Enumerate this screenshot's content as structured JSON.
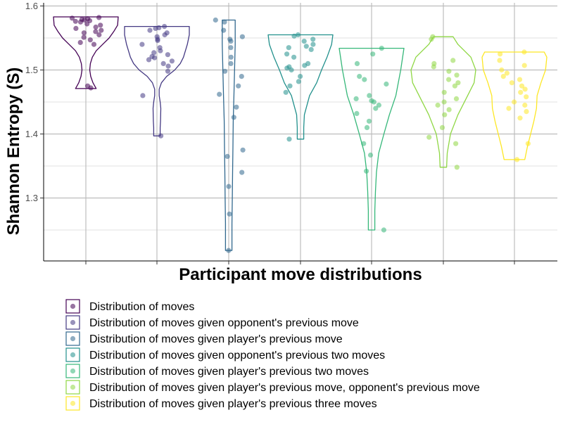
{
  "chart_data": {
    "type": "violin",
    "xlabel": "Participant move distributions",
    "ylabel": "Shannon Entropy (S)",
    "ylim": [
      1.2,
      1.6
    ],
    "y_ticks": [
      "1.3",
      "1.4",
      "1.5",
      "1.6"
    ],
    "y_tick_values": [
      1.3,
      1.4,
      1.5,
      1.6
    ],
    "grid": true,
    "legend_position": "bottom",
    "series": [
      {
        "name": "Distribution of moves",
        "color": "#440154",
        "min": 1.471,
        "max": 1.583,
        "profile": [
          [
            1.471,
            0.32
          ],
          [
            1.48,
            0.22
          ],
          [
            1.49,
            0.15
          ],
          [
            1.5,
            0.12
          ],
          [
            1.51,
            0.14
          ],
          [
            1.52,
            0.2
          ],
          [
            1.53,
            0.32
          ],
          [
            1.54,
            0.52
          ],
          [
            1.55,
            0.72
          ],
          [
            1.56,
            0.86
          ],
          [
            1.57,
            0.98
          ],
          [
            1.583,
            1.0
          ]
        ],
        "points": [
          1.582,
          1.581,
          1.58,
          1.579,
          1.578,
          1.577,
          1.576,
          1.575,
          1.572,
          1.57,
          1.567,
          1.565,
          1.562,
          1.56,
          1.558,
          1.555,
          1.551,
          1.547,
          1.543,
          1.54,
          1.475,
          1.472
        ]
      },
      {
        "name": "Distribution of moves given opponent's previous move",
        "color": "#443983",
        "min": 1.397,
        "max": 1.568,
        "profile": [
          [
            1.397,
            0.1
          ],
          [
            1.41,
            0.1
          ],
          [
            1.42,
            0.11
          ],
          [
            1.44,
            0.12
          ],
          [
            1.45,
            0.1
          ],
          [
            1.46,
            0.07
          ],
          [
            1.47,
            0.07
          ],
          [
            1.48,
            0.14
          ],
          [
            1.49,
            0.3
          ],
          [
            1.5,
            0.55
          ],
          [
            1.51,
            0.72
          ],
          [
            1.52,
            0.82
          ],
          [
            1.54,
            0.94
          ],
          [
            1.555,
            1.0
          ],
          [
            1.568,
            1.0
          ]
        ],
        "points": [
          1.568,
          1.566,
          1.565,
          1.562,
          1.558,
          1.555,
          1.552,
          1.548,
          1.546,
          1.54,
          1.535,
          1.53,
          1.527,
          1.524,
          1.521,
          1.519,
          1.516,
          1.514,
          1.51,
          1.506,
          1.498,
          1.46,
          1.397
        ]
      },
      {
        "name": "Distribution of moves given player's previous move",
        "color": "#31688e",
        "min": 1.218,
        "max": 1.578,
        "profile": [
          [
            1.218,
            0.1
          ],
          [
            1.26,
            0.1
          ],
          [
            1.3,
            0.11
          ],
          [
            1.34,
            0.12
          ],
          [
            1.38,
            0.13
          ],
          [
            1.42,
            0.14
          ],
          [
            1.46,
            0.16
          ],
          [
            1.5,
            0.18
          ],
          [
            1.54,
            0.2
          ],
          [
            1.57,
            0.2
          ],
          [
            1.578,
            0.2
          ]
        ],
        "points": [
          1.578,
          1.575,
          1.562,
          1.552,
          1.548,
          1.545,
          1.535,
          1.52,
          1.51,
          1.498,
          1.49,
          1.475,
          1.462,
          1.442,
          1.426,
          1.375,
          1.365,
          1.34,
          1.318,
          1.275,
          1.218
        ]
      },
      {
        "name": "Distribution of moves given opponent's previous two moves",
        "color": "#21908c",
        "min": 1.392,
        "max": 1.555,
        "profile": [
          [
            1.392,
            0.1
          ],
          [
            1.41,
            0.1
          ],
          [
            1.43,
            0.12
          ],
          [
            1.46,
            0.28
          ],
          [
            1.48,
            0.5
          ],
          [
            1.5,
            0.65
          ],
          [
            1.52,
            0.82
          ],
          [
            1.54,
            0.96
          ],
          [
            1.555,
            1.0
          ]
        ],
        "points": [
          1.555,
          1.553,
          1.548,
          1.545,
          1.54,
          1.537,
          1.535,
          1.532,
          1.525,
          1.52,
          1.51,
          1.507,
          1.505,
          1.503,
          1.5,
          1.49,
          1.482,
          1.475,
          1.465,
          1.392
        ]
      },
      {
        "name": "Distribution of moves given player's previous two moves",
        "color": "#35b779",
        "min": 1.25,
        "max": 1.534,
        "profile": [
          [
            1.25,
            0.1
          ],
          [
            1.28,
            0.1
          ],
          [
            1.31,
            0.12
          ],
          [
            1.34,
            0.15
          ],
          [
            1.37,
            0.22
          ],
          [
            1.4,
            0.38
          ],
          [
            1.43,
            0.55
          ],
          [
            1.46,
            0.75
          ],
          [
            1.5,
            0.9
          ],
          [
            1.534,
            1.0
          ]
        ],
        "points": [
          1.534,
          1.525,
          1.51,
          1.49,
          1.485,
          1.478,
          1.46,
          1.455,
          1.452,
          1.45,
          1.445,
          1.44,
          1.432,
          1.42,
          1.41,
          1.385,
          1.367,
          1.342,
          1.25
        ]
      },
      {
        "name": "Distribution of moves given player's previous move, opponent's previous move",
        "color": "#8fd744",
        "min": 1.348,
        "max": 1.552,
        "profile": [
          [
            1.348,
            0.1
          ],
          [
            1.37,
            0.12
          ],
          [
            1.4,
            0.22
          ],
          [
            1.43,
            0.45
          ],
          [
            1.46,
            0.75
          ],
          [
            1.48,
            0.95
          ],
          [
            1.5,
            1.0
          ],
          [
            1.52,
            0.85
          ],
          [
            1.54,
            0.45
          ],
          [
            1.552,
            0.3
          ]
        ],
        "points": [
          1.552,
          1.548,
          1.515,
          1.51,
          1.505,
          1.498,
          1.492,
          1.485,
          1.48,
          1.475,
          1.465,
          1.455,
          1.45,
          1.445,
          1.438,
          1.43,
          1.41,
          1.395,
          1.385,
          1.348
        ]
      },
      {
        "name": "Distribution of moves given player's previous three moves",
        "color": "#fde725",
        "min": 1.36,
        "max": 1.528,
        "profile": [
          [
            1.36,
            0.32
          ],
          [
            1.38,
            0.4
          ],
          [
            1.4,
            0.5
          ],
          [
            1.42,
            0.6
          ],
          [
            1.44,
            0.68
          ],
          [
            1.46,
            0.7
          ],
          [
            1.48,
            0.82
          ],
          [
            1.5,
            0.96
          ],
          [
            1.52,
            1.0
          ],
          [
            1.528,
            0.92
          ]
        ],
        "points": [
          1.528,
          1.525,
          1.515,
          1.507,
          1.5,
          1.495,
          1.49,
          1.485,
          1.48,
          1.475,
          1.47,
          1.465,
          1.458,
          1.45,
          1.445,
          1.44,
          1.435,
          1.425,
          1.385,
          1.36
        ]
      }
    ]
  }
}
